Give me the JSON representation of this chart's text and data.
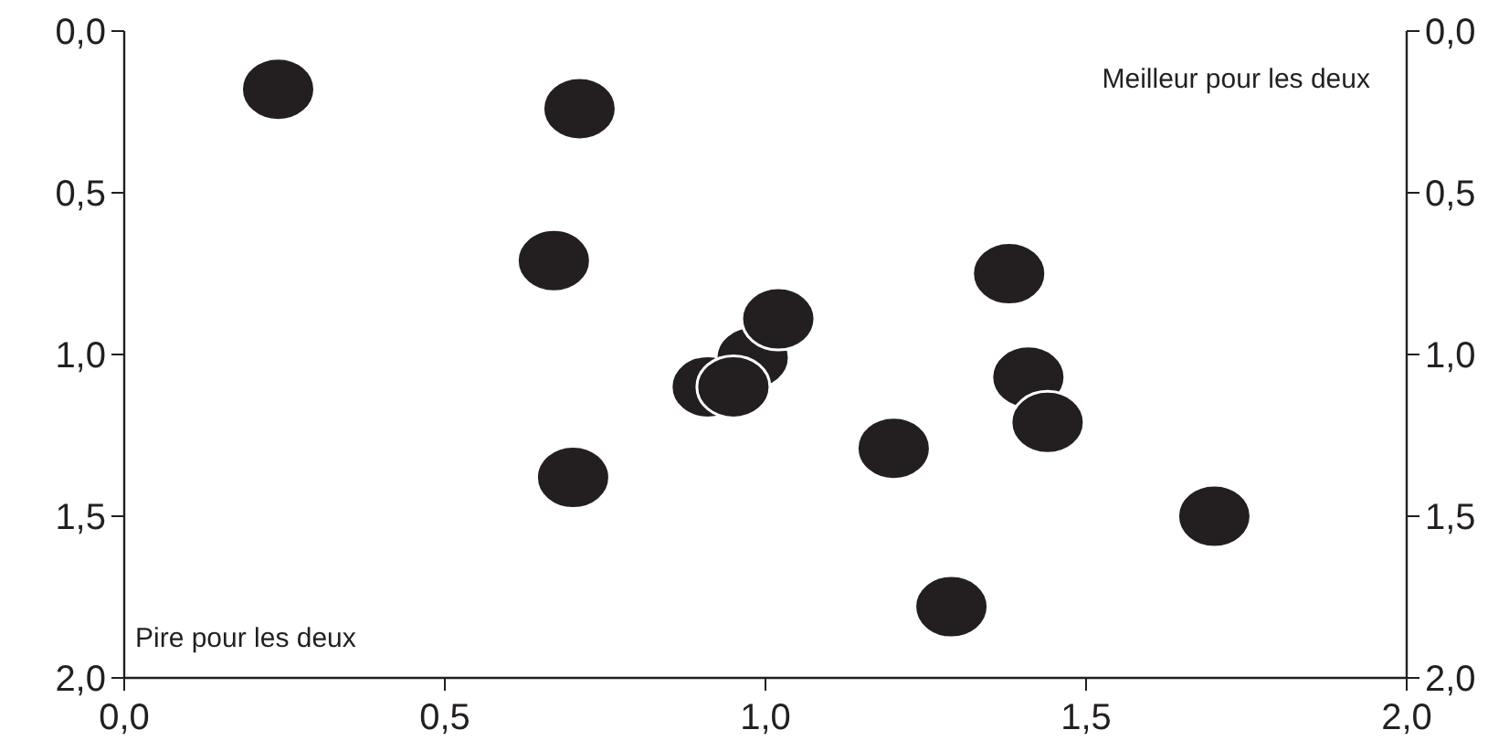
{
  "chart_data": {
    "type": "scatter",
    "marker": "circle",
    "grid": false,
    "x": [
      0.24,
      0.71,
      0.67,
      0.7,
      0.91,
      0.98,
      0.95,
      1.02,
      1.2,
      1.38,
      1.41,
      1.44,
      1.29,
      1.7
    ],
    "values": [
      0.18,
      0.24,
      0.71,
      1.38,
      1.1,
      1.01,
      1.1,
      0.89,
      1.29,
      0.75,
      1.07,
      1.21,
      1.78,
      1.5
    ],
    "color": "#231f20",
    "xlim": [
      0,
      2
    ],
    "xticks": [
      {
        "value": 0,
        "label": "0,0"
      },
      {
        "value": 0.5,
        "label": "0,5"
      },
      {
        "value": 1,
        "label": "1,0"
      },
      {
        "value": 1.5,
        "label": "1,5"
      },
      {
        "value": 2,
        "label": "2,0"
      }
    ],
    "ylim": [
      2,
      0
    ],
    "yticks": [
      {
        "value": 0,
        "label": "0,0"
      },
      {
        "value": 0.5,
        "label": "0,5"
      },
      {
        "value": 1,
        "label": "1,0"
      },
      {
        "value": 1.5,
        "label": "1,5"
      },
      {
        "value": 2,
        "label": "2,0"
      }
    ],
    "y2lim": [
      2,
      0
    ],
    "y2ticks": [
      {
        "value": 0,
        "label": "0,0"
      },
      {
        "value": 0.5,
        "label": "0,5"
      },
      {
        "value": 1,
        "label": "1,0"
      },
      {
        "value": 1.5,
        "label": "1,5"
      },
      {
        "value": 2,
        "label": "2,0"
      }
    ],
    "annotations": [
      "Meilleur pour les deux",
      "Pire pour les deux"
    ]
  }
}
